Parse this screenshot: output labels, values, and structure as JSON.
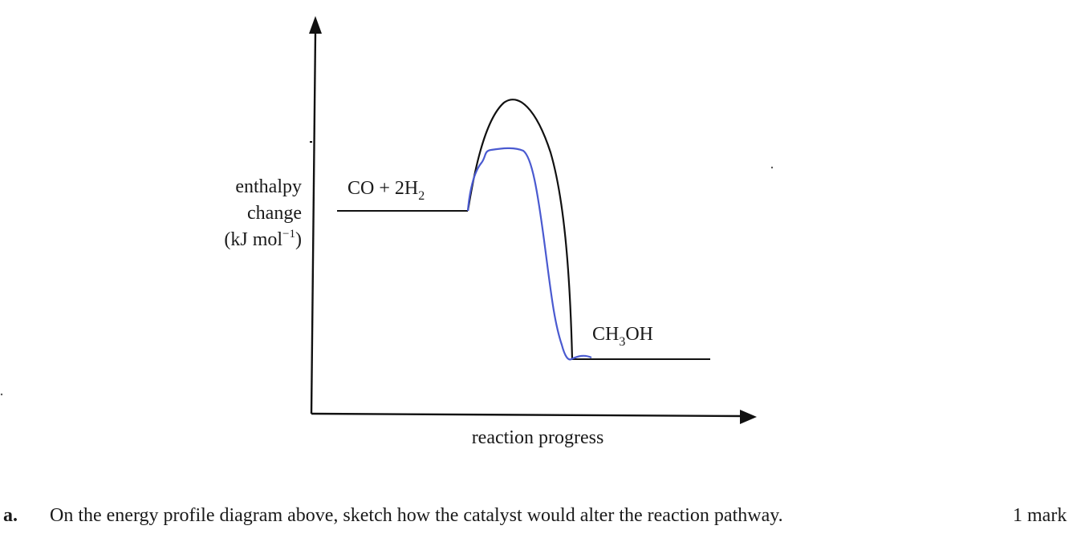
{
  "diagram": {
    "y_axis_label": {
      "line1": "enthalpy",
      "line2": "change",
      "line3_prefix": "(kJ mol",
      "line3_sup": "−1",
      "line3_suffix": ")"
    },
    "x_axis_label": "reaction progress",
    "reactants": {
      "main": "CO + 2H",
      "sub": "2"
    },
    "products": {
      "pre": "CH",
      "sub": "3",
      "post": "OH"
    },
    "colors": {
      "uncatalysed": "#111111",
      "catalysed": "#4a5ad0",
      "axes": "#111111"
    }
  },
  "question": {
    "letter": "a.",
    "text": "On the energy profile diagram above, sketch how the catalyst would alter the reaction pathway.",
    "marks": "1 mark"
  }
}
